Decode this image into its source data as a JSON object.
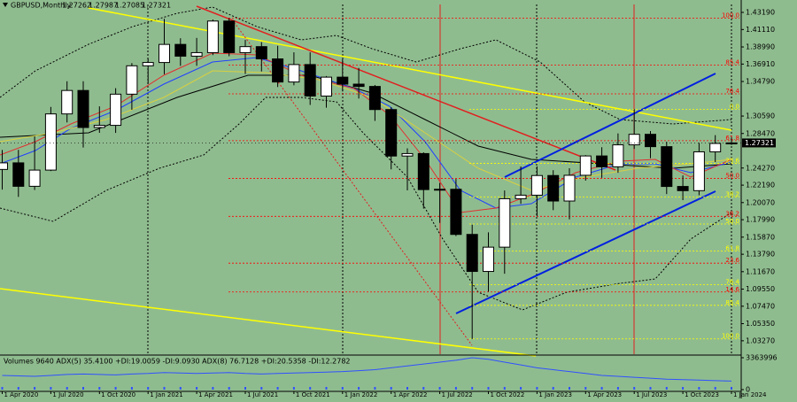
{
  "chart_data": {
    "type": "candlestick",
    "symbol": "GBPUSD,Monthly",
    "categories": [
      "1 Apr 2020",
      null,
      null,
      "1 Jul 2020",
      null,
      null,
      "1 Oct 2020",
      null,
      null,
      "1 Jan 2021",
      null,
      null,
      "1 Apr 2021",
      null,
      null,
      "1 Jul 2021",
      null,
      null,
      "1 Oct 2021",
      null,
      null,
      "1 Jan 2022",
      null,
      null,
      "1 Apr 2022",
      null,
      null,
      "1 Jul 2022",
      null,
      null,
      "1 Oct 2022",
      null,
      null,
      "1 Jan 2023",
      null,
      null,
      "1 Apr 2023",
      null,
      null,
      "1 Jul 2023",
      null,
      null,
      "1 Oct 2023",
      null,
      null,
      "1 Jan 2024"
    ],
    "open": [
      1.241,
      1.249,
      1.2205,
      1.2402,
      1.3085,
      1.337,
      1.292,
      1.2946,
      1.3325,
      1.367,
      1.371,
      1.393,
      1.3787,
      1.383,
      1.4214,
      1.383,
      1.3903,
      1.3754,
      1.3473,
      1.3685,
      1.3302,
      1.3532,
      1.3447,
      1.3419,
      1.3138,
      1.2573,
      1.2603,
      1.2165,
      1.2169,
      1.162,
      1.117,
      1.1465,
      1.2054,
      1.2097,
      1.2336,
      1.2026,
      1.2339,
      1.2574,
      1.2442,
      1.2709,
      1.2837,
      1.2687,
      1.2203,
      1.2152,
      1.2624,
      1.27262
    ],
    "high": [
      1.2647,
      1.2648,
      1.2813,
      1.317,
      1.3482,
      1.3482,
      1.3177,
      1.3398,
      1.3703,
      1.3759,
      1.4241,
      1.4005,
      1.4009,
      1.4233,
      1.4249,
      1.3984,
      1.3958,
      1.3913,
      1.3834,
      1.3834,
      1.3545,
      1.3749,
      1.3644,
      1.3437,
      1.3167,
      1.2667,
      1.2618,
      1.2246,
      1.2294,
      1.1738,
      1.1646,
      1.2154,
      1.2446,
      1.2447,
      1.2401,
      1.2424,
      1.2584,
      1.268,
      1.2848,
      1.3142,
      1.2877,
      1.2747,
      1.2337,
      1.2733,
      1.2827,
      1.27987
    ],
    "low": [
      1.2165,
      1.2076,
      1.216,
      1.239,
      1.2981,
      1.2676,
      1.2855,
      1.2854,
      1.3135,
      1.3452,
      1.3567,
      1.3669,
      1.367,
      1.38,
      1.3786,
      1.3571,
      1.3601,
      1.3412,
      1.3433,
      1.3194,
      1.3161,
      1.3358,
      1.3272,
      1.3,
      1.2411,
      1.2155,
      1.1934,
      1.176,
      1.16,
      1.035,
      1.0924,
      1.1142,
      1.1992,
      1.1841,
      1.1915,
      1.1803,
      1.2274,
      1.2308,
      1.2369,
      1.2659,
      1.2547,
      1.211,
      1.2037,
      1.2096,
      1.25,
      1.27085
    ],
    "close": [
      1.249,
      1.2205,
      1.2402,
      1.3085,
      1.337,
      1.292,
      1.2946,
      1.3325,
      1.367,
      1.371,
      1.393,
      1.3787,
      1.383,
      1.4214,
      1.383,
      1.3903,
      1.3754,
      1.3473,
      1.3685,
      1.3302,
      1.3532,
      1.3447,
      1.3419,
      1.3138,
      1.2573,
      1.2603,
      1.2165,
      1.2169,
      1.162,
      1.117,
      1.1465,
      1.2054,
      1.2097,
      1.2336,
      1.2026,
      1.2339,
      1.2574,
      1.2442,
      1.2709,
      1.2837,
      1.2687,
      1.2203,
      1.2152,
      1.2624,
      1.2726,
      1.27321
    ],
    "up_color": "#ffffff",
    "down_color": "#000000",
    "ylim": [
      1.0164,
      1.4416
    ],
    "yticks": [
      {
        "value": 1.4319,
        "label": "1.43190"
      },
      {
        "value": 1.4111,
        "label": "1.41110"
      },
      {
        "value": 1.3899,
        "label": "1.38990"
      },
      {
        "value": 1.3691,
        "label": "1.36910"
      },
      {
        "value": 1.3479,
        "label": "1.34790"
      },
      {
        "value": 1.3059,
        "label": "1.30590"
      },
      {
        "value": 1.2847,
        "label": "1.28470"
      },
      {
        "value": 1.2427,
        "label": "1.24270"
      },
      {
        "value": 1.2219,
        "label": "1.22190"
      },
      {
        "value": 1.2007,
        "label": "1.20070"
      },
      {
        "value": 1.1799,
        "label": "1.17990"
      },
      {
        "value": 1.1587,
        "label": "1.15870"
      },
      {
        "value": 1.1379,
        "label": "1.13790"
      },
      {
        "value": 1.1167,
        "label": "1.11670"
      },
      {
        "value": 1.0955,
        "label": "1.09550"
      },
      {
        "value": 1.0747,
        "label": "1.07470"
      },
      {
        "value": 1.0535,
        "label": "1.05350"
      },
      {
        "value": 1.0327,
        "label": "1.03270"
      }
    ],
    "fib_red": {
      "color": "#ff0000",
      "levels": [
        {
          "label": "100.0",
          "price": 1.4249
        },
        {
          "label": "85.4",
          "price": 1.368
        },
        {
          "label": "76.4",
          "price": 1.3329
        },
        {
          "label": "61.8",
          "price": 1.276
        },
        {
          "label": "50.0",
          "price": 1.23
        },
        {
          "label": "38.2",
          "price": 1.184
        },
        {
          "label": "23.6",
          "price": 1.1271
        },
        {
          "label": "14.6",
          "price": 1.092
        }
      ]
    },
    "fib_yellow": {
      "color": "#ffff00",
      "levels": [
        {
          "label": "0.0",
          "price": 1.3142
        },
        {
          "label": "23.6",
          "price": 1.2483
        },
        {
          "label": "38.2",
          "price": 1.2075
        },
        {
          "label": "50.0",
          "price": 1.1746
        },
        {
          "label": "61.8",
          "price": 1.1417
        },
        {
          "label": "76.4",
          "price": 1.1009
        },
        {
          "label": "85.4",
          "price": 1.0758
        },
        {
          "label": "100.0",
          "price": 1.035
        }
      ]
    },
    "indicator": {
      "header": "Volumes 9640  ADX(5) 35.4100 +DI:19.0059 -DI:9.0930  ADX(8) 76.7128 +DI:20.5358 -DI:12.2782",
      "color": "#3050ff",
      "ylim": [
        0,
        3363996
      ],
      "yticks": [
        3363996,
        0
      ],
      "values": [
        1500000,
        1450000,
        1400000,
        1500000,
        1600000,
        1650000,
        1600000,
        1550000,
        1650000,
        1700000,
        1800000,
        1750000,
        1700000,
        1750000,
        1800000,
        1700000,
        1650000,
        1700000,
        1750000,
        1800000,
        1850000,
        1900000,
        2000000,
        2100000,
        2300000,
        2500000,
        2700000,
        2900000,
        3100000,
        3363996,
        3200000,
        2900000,
        2600000,
        2300000,
        2100000,
        1900000,
        1700000,
        1500000,
        1400000,
        1300000,
        1200000,
        1100000,
        1050000,
        1000000,
        950000,
        900000
      ]
    }
  }
}
